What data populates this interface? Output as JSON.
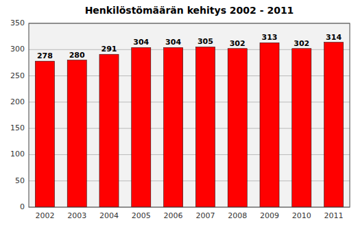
{
  "chart_data": {
    "type": "bar",
    "title": "Henkilöstömäärän kehitys 2002 - 2011",
    "categories": [
      "2002",
      "2003",
      "2004",
      "2005",
      "2006",
      "2007",
      "2008",
      "2009",
      "2010",
      "2011"
    ],
    "values": [
      278,
      280,
      291,
      304,
      304,
      305,
      302,
      313,
      302,
      314
    ],
    "color": "#ff0000",
    "ylim": [
      0,
      350
    ],
    "yticks": [
      0,
      50,
      100,
      150,
      200,
      250,
      300,
      350
    ],
    "grid": true,
    "data_labels": true
  }
}
